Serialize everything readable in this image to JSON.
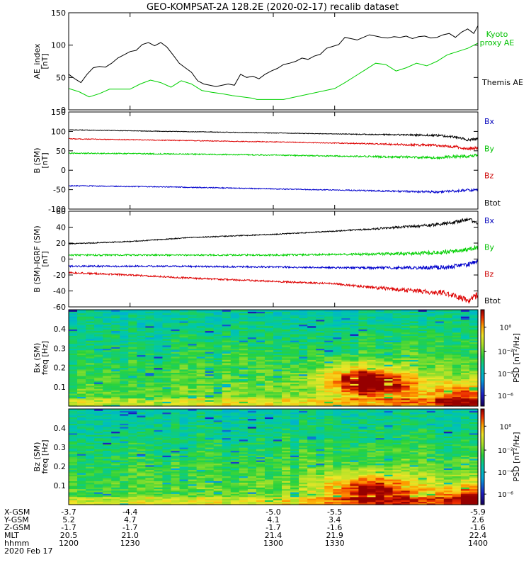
{
  "title": "GEO-KOMPSAT-2A 128.2E (2020-02-17) recalib dataset",
  "colors": {
    "black": "#000000",
    "green": "#00d000",
    "blue": "#0000cc",
    "red": "#dd0000",
    "legend_green": "#00c000",
    "legend_blue": "#0000bb",
    "legend_red": "#cc0000"
  },
  "chart_data": [
    {
      "type": "line",
      "ylabel": "AE_index [nT]",
      "ylabel_lines": [
        "AE_index",
        "[nT]"
      ],
      "ylim": [
        0,
        150
      ],
      "yticks": [
        0,
        50,
        100,
        150
      ],
      "xlim": [
        1200,
        1400
      ],
      "series": [
        {
          "name": "Kyoto proxy AE",
          "label_lines": [
            "Kyoto",
            "proxy AE"
          ],
          "color": "green",
          "x": [
            1200,
            1205,
            1210,
            1215,
            1220,
            1230,
            1235,
            1240,
            1245,
            1250,
            1255,
            1260,
            1265,
            1270,
            1275,
            1280,
            1290,
            1292,
            1300,
            1305,
            1330,
            1335,
            1340,
            1345,
            1350,
            1355,
            1360,
            1365,
            1370,
            1375,
            1380,
            1385,
            1390,
            1395,
            1400
          ],
          "values": [
            33,
            28,
            20,
            25,
            32,
            32,
            40,
            46,
            42,
            35,
            45,
            40,
            30,
            27,
            25,
            22,
            18,
            16,
            16,
            16,
            33,
            42,
            52,
            62,
            72,
            70,
            60,
            65,
            72,
            68,
            75,
            85,
            90,
            95,
            103
          ]
        },
        {
          "name": "Themis AE",
          "label_lines": [
            "Themis AE"
          ],
          "color": "black",
          "x": [
            1200,
            1203,
            1206,
            1209,
            1212,
            1215,
            1218,
            1221,
            1224,
            1227,
            1230,
            1233,
            1236,
            1239,
            1242,
            1245,
            1248,
            1251,
            1254,
            1257,
            1260,
            1263,
            1266,
            1269,
            1272,
            1275,
            1278,
            1281,
            1284,
            1287,
            1290,
            1293,
            1296,
            1299,
            1302,
            1305,
            1308,
            1311,
            1314,
            1317,
            1320,
            1323,
            1326,
            1329,
            1332,
            1335,
            1338,
            1341,
            1344,
            1347,
            1350,
            1353,
            1356,
            1359,
            1362,
            1365,
            1368,
            1371,
            1374,
            1377,
            1380,
            1383,
            1386,
            1389,
            1392,
            1395,
            1398,
            1400
          ],
          "values": [
            55,
            48,
            42,
            55,
            65,
            67,
            66,
            72,
            80,
            85,
            90,
            92,
            101,
            104,
            99,
            104,
            97,
            85,
            72,
            65,
            58,
            45,
            40,
            38,
            36,
            38,
            40,
            38,
            55,
            50,
            52,
            48,
            55,
            60,
            64,
            70,
            72,
            75,
            80,
            78,
            83,
            86,
            95,
            98,
            101,
            112,
            110,
            108,
            112,
            116,
            114,
            112,
            111,
            113,
            112,
            114,
            110,
            113,
            114,
            111,
            112,
            116,
            118,
            112,
            120,
            125,
            118,
            130
          ]
        }
      ]
    },
    {
      "type": "line",
      "ylabel": "B (SM) [nT]",
      "ylabel_lines": [
        "B (SM)",
        "[nT]"
      ],
      "ylim": [
        -100,
        150
      ],
      "yticks": [
        -100,
        -50,
        0,
        50,
        100,
        150
      ],
      "xlim": [
        1200,
        1400
      ],
      "series": [
        {
          "name": "Bx",
          "color": "blue",
          "x": [
            1200,
            1250,
            1300,
            1350,
            1380,
            1400
          ],
          "values": [
            -40,
            -43,
            -48,
            -53,
            -56,
            -50
          ],
          "noise": 1.2,
          "noise_end": 3
        }
      ],
      "extra_series": [
        {
          "color": "black",
          "x": [
            1200,
            1250,
            1300,
            1350,
            1380,
            1390,
            1395,
            1400
          ],
          "values": [
            104,
            100,
            96,
            92,
            90,
            85,
            78,
            80
          ],
          "noise": 0.8,
          "noise_end": 4
        },
        {
          "color": "red",
          "x": [
            1200,
            1250,
            1300,
            1350,
            1380,
            1390,
            1395,
            1400
          ],
          "values": [
            81,
            77,
            73,
            68,
            64,
            60,
            55,
            58
          ],
          "noise": 1.0,
          "noise_end": 4
        },
        {
          "color": "green",
          "x": [
            1200,
            1250,
            1300,
            1350,
            1380,
            1390,
            1400
          ],
          "values": [
            44,
            42,
            39,
            35,
            33,
            35,
            38
          ],
          "noise": 1.5,
          "noise_end": 3
        }
      ],
      "legend": [
        "Bx",
        "By",
        "Bz",
        "Btot"
      ],
      "legend_colors": [
        "legend_blue",
        "legend_green",
        "legend_red",
        "black"
      ]
    },
    {
      "type": "line",
      "ylabel": "B (SM)-IGRF (SM) [nT]",
      "ylabel_lines": [
        "B (SM)-IGRF (SM)",
        "[nT]"
      ],
      "ylim": [
        -60,
        60
      ],
      "yticks": [
        -60,
        -40,
        -20,
        0,
        20,
        40,
        60
      ],
      "xlim": [
        1200,
        1400
      ],
      "series": [
        {
          "color": "black",
          "x": [
            1200,
            1230,
            1260,
            1300,
            1330,
            1350,
            1380,
            1390,
            1395,
            1400
          ],
          "values": [
            19,
            22,
            27,
            31,
            35,
            38,
            43,
            47,
            50,
            45
          ],
          "noise": 0.6,
          "noise_end": 4
        },
        {
          "color": "green",
          "x": [
            1200,
            1250,
            1300,
            1340,
            1370,
            1385,
            1395,
            1400
          ],
          "values": [
            5,
            5,
            5,
            6,
            7,
            9,
            12,
            15
          ],
          "noise": 1.0,
          "noise_end": 3
        },
        {
          "color": "blue",
          "x": [
            1200,
            1250,
            1300,
            1340,
            1370,
            1385,
            1395,
            1400
          ],
          "values": [
            -9,
            -9,
            -10,
            -11,
            -11,
            -10,
            -7,
            -3
          ],
          "noise": 1.0,
          "noise_end": 3
        },
        {
          "color": "red",
          "x": [
            1200,
            1230,
            1260,
            1300,
            1330,
            1350,
            1370,
            1385,
            1390,
            1395,
            1400
          ],
          "values": [
            -17,
            -20,
            -24,
            -28,
            -31,
            -36,
            -40,
            -43,
            -48,
            -52,
            -45
          ],
          "noise": 1.0,
          "noise_end": 4
        }
      ],
      "legend": [
        "Bx",
        "By",
        "Bz",
        "Btot"
      ],
      "legend_colors": [
        "legend_blue",
        "legend_green",
        "legend_red",
        "black"
      ]
    },
    {
      "type": "heatmap",
      "ylabel": "Bx (SM) freq [Hz]",
      "ylabel_lines": [
        "Bx (SM)",
        "freq [Hz]"
      ],
      "ylim": [
        0,
        0.5
      ],
      "yticks": [
        0.1,
        0.2,
        0.3,
        0.4
      ],
      "xlim": [
        1200,
        1400
      ],
      "colorbar_label": "PSD [nT²/Hz]",
      "colorbar_ticks": [
        "10⁰",
        "10⁻²",
        "10⁻⁴",
        "10⁻⁶"
      ],
      "hot_spots": [
        {
          "x": 1340,
          "f": 0.14,
          "level": 0.35
        },
        {
          "x": 1355,
          "f": 0.11,
          "level": 0.3
        },
        {
          "x": 1395,
          "f": 0.05,
          "level": 0.3
        }
      ]
    },
    {
      "type": "heatmap",
      "ylabel": "Bz (SM) freq [Hz]",
      "ylabel_lines": [
        "Bz (SM)",
        "freq [Hz]"
      ],
      "ylim": [
        0,
        0.5
      ],
      "yticks": [
        0.1,
        0.2,
        0.3,
        0.4
      ],
      "xlim": [
        1200,
        1400
      ],
      "colorbar_label": "PSD [nT²/Hz]",
      "colorbar_ticks": [
        "10⁰",
        "10⁻²",
        "10⁻⁴",
        "10⁻⁶"
      ],
      "hot_spots": [
        {
          "x": 1340,
          "f": 0.09,
          "level": 0.25
        },
        {
          "x": 1355,
          "f": 0.07,
          "level": 0.25
        },
        {
          "x": 1395,
          "f": 0.04,
          "level": 0.3
        }
      ]
    }
  ],
  "axis_table": {
    "row_labels": [
      "X-GSM",
      "Y-GSM",
      "Z-GSM",
      "MLT",
      "hhmm"
    ],
    "date_label": "2020 Feb 17",
    "tick_times": [
      1200,
      1230,
      1300,
      1330,
      1400
    ],
    "columns": [
      [
        "-3.7",
        "5.2",
        "-1.7",
        "20.5",
        "1200"
      ],
      [
        "-4.4",
        "4.7",
        "-1.7",
        "21.0",
        "1230"
      ],
      [
        "-5.0",
        "4.1",
        "-1.7",
        "21.4",
        "1300"
      ],
      [
        "-5.5",
        "3.4",
        "-1.6",
        "21.9",
        "1330"
      ],
      [
        "-5.9",
        "2.6",
        "-1.6",
        "22.4",
        "1400"
      ]
    ]
  }
}
